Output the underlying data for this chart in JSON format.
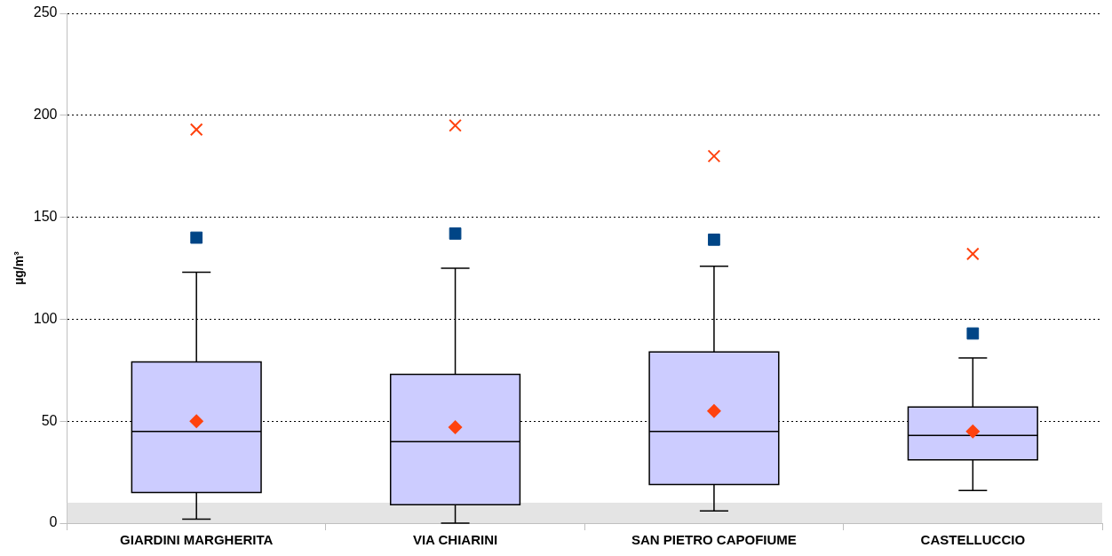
{
  "chart_data": {
    "type": "box",
    "ylabel": "µg/m³",
    "categories": [
      "GIARDINI MARGHERITA",
      "VIA CHIARINI",
      "SAN PIETRO CAPOFIUME",
      "CASTELLUCCIO"
    ],
    "boxes": [
      {
        "low": 2,
        "q1": 15,
        "median": 45,
        "q3": 79,
        "high": 123,
        "mean": 50
      },
      {
        "low": 0,
        "q1": 9,
        "median": 40,
        "q3": 73,
        "high": 125,
        "mean": 47
      },
      {
        "low": 6,
        "q1": 19,
        "median": 45,
        "q3": 84,
        "high": 126,
        "mean": 55
      },
      {
        "low": 16,
        "q1": 31,
        "median": 43,
        "q3": 57,
        "high": 81,
        "mean": 45
      }
    ],
    "color": "#ccccff",
    "series": [
      {
        "type": "scatter",
        "marker": "square",
        "color": "#004586",
        "x": [
          "GIARDINI MARGHERITA",
          "VIA CHIARINI",
          "SAN PIETRO CAPOFIUME",
          "CASTELLUCCIO"
        ],
        "values": [
          140,
          142,
          139,
          93
        ]
      },
      {
        "type": "scatter",
        "marker": "cross",
        "color": "#ff420e",
        "x": [
          "GIARDINI MARGHERITA",
          "VIA CHIARINI",
          "SAN PIETRO CAPOFIUME",
          "CASTELLUCCIO"
        ],
        "values": [
          193,
          195,
          180,
          132
        ]
      }
    ],
    "bands": [
      {
        "axis": "y",
        "from": 0,
        "to": 10,
        "color": "#e4e4e4"
      }
    ],
    "ylim": [
      0,
      250
    ],
    "yticks": [
      0,
      50,
      100,
      150,
      200,
      250
    ],
    "grid": "y",
    "legend": false
  }
}
